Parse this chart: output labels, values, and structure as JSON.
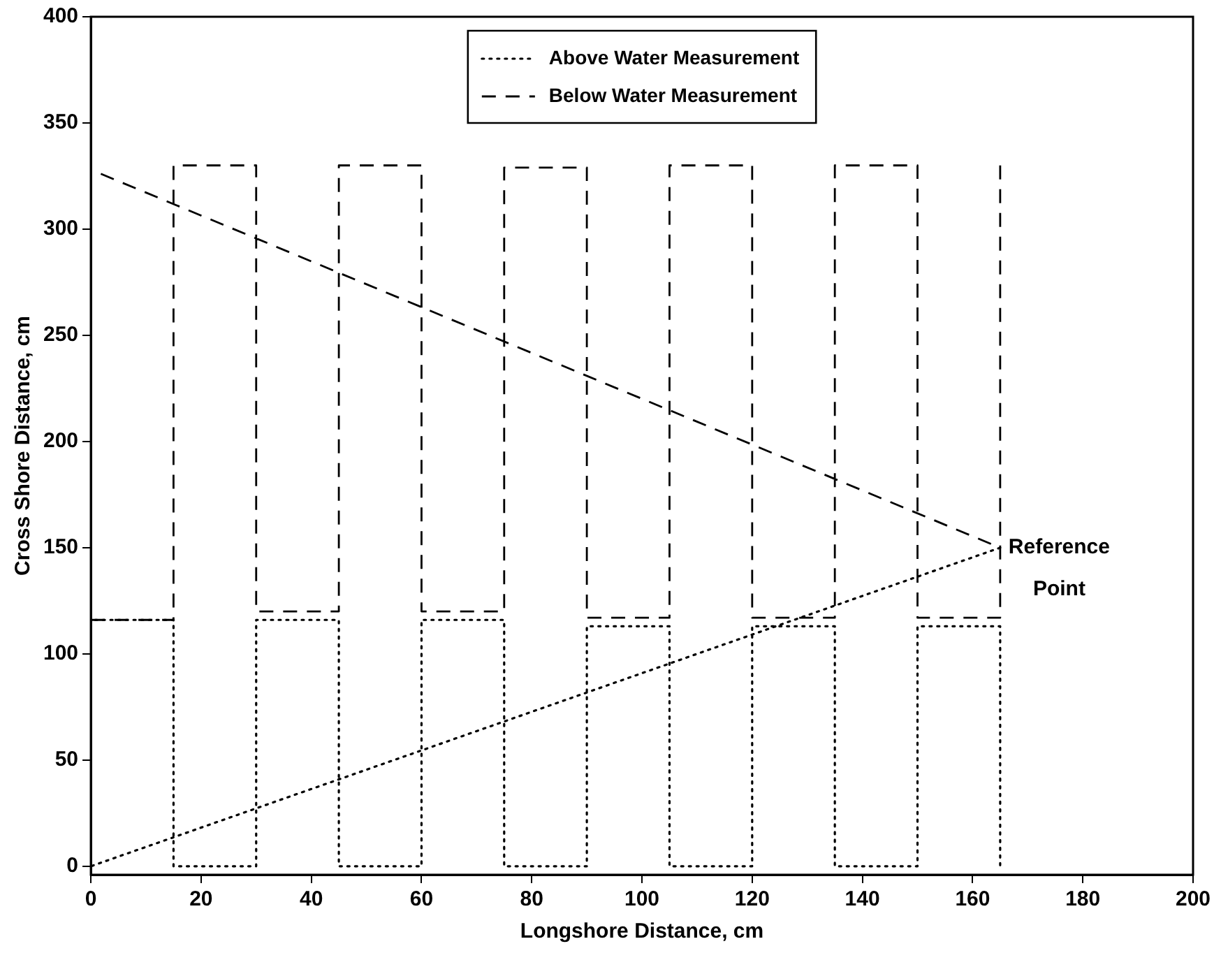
{
  "chart_data": {
    "type": "line",
    "xlabel": "Longshore Distance, cm",
    "ylabel": "Cross Shore Distance, cm",
    "series": [
      {
        "name": "Above Water Measurement",
        "color": "#000000",
        "line_style": "dotted",
        "x": [
          165,
          0,
          0,
          15,
          15,
          30,
          30,
          45,
          45,
          60,
          60,
          75,
          75,
          90,
          90,
          105,
          105,
          120,
          120,
          135,
          135,
          150,
          150,
          165,
          165
        ],
        "values": [
          150,
          0,
          116,
          116,
          0,
          0,
          116,
          116,
          0,
          0,
          116,
          116,
          0,
          0,
          113,
          113,
          0,
          0,
          113,
          113,
          0,
          0,
          113,
          113,
          0
        ]
      },
      {
        "name": "Below Water Measurement",
        "color": "#000000",
        "line_style": "dashed",
        "x": [
          165,
          165,
          150,
          150,
          135,
          135,
          120,
          120,
          105,
          105,
          90,
          90,
          75,
          75,
          60,
          60,
          45,
          45,
          30,
          30,
          15,
          15,
          0,
          0,
          165
        ],
        "values": [
          330,
          117,
          117,
          330,
          330,
          117,
          117,
          330,
          330,
          117,
          117,
          329,
          329,
          120,
          120,
          330,
          330,
          120,
          120,
          330,
          330,
          116,
          116,
          328,
          150
        ]
      }
    ],
    "xlim": [
      0,
      200
    ],
    "xticks": [
      0,
      20,
      40,
      60,
      80,
      100,
      120,
      140,
      160,
      180,
      200
    ],
    "ylim": [
      -4,
      400
    ],
    "yticks": [
      0,
      50,
      100,
      150,
      200,
      250,
      300,
      350,
      400
    ],
    "grid": false,
    "legend": "top",
    "marker": "none",
    "annotations": [
      {
        "text": "Reference Point",
        "x": 165,
        "y": 150
      }
    ]
  }
}
